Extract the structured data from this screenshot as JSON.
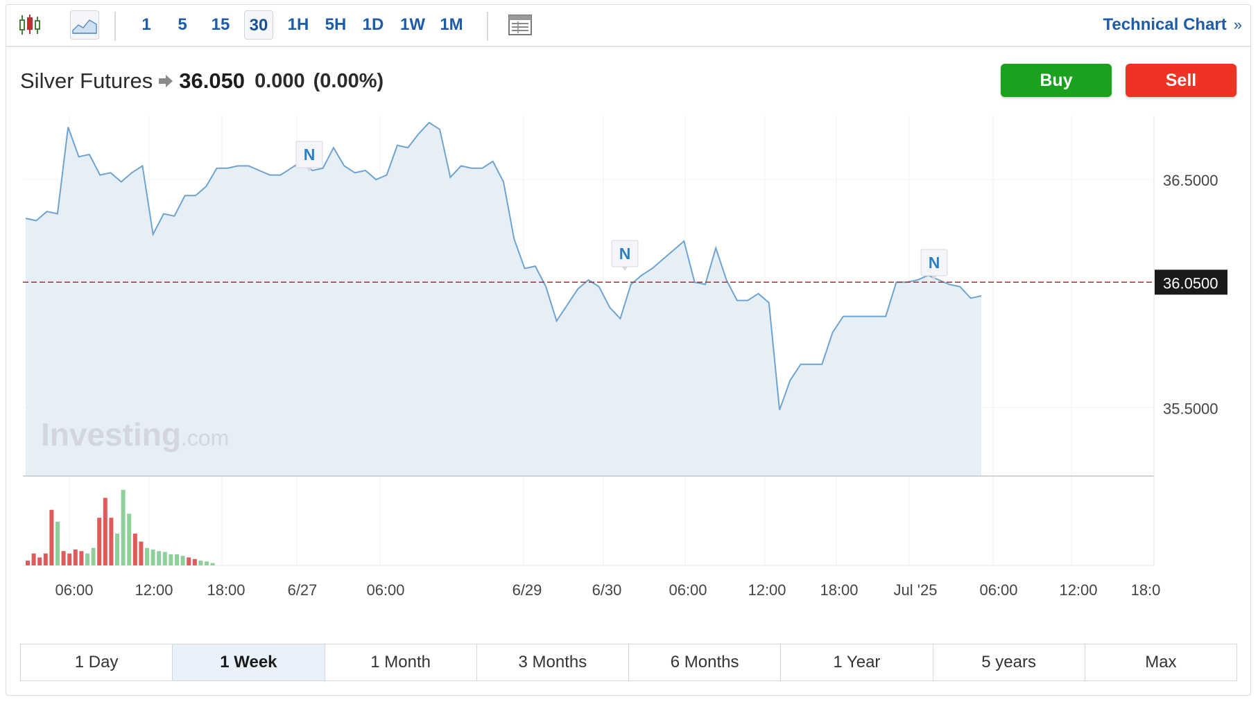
{
  "toolbar": {
    "chart_type_icon": "candlestick-icon",
    "area_icon": "area-chart-icon",
    "intervals": [
      {
        "label": "1",
        "active": false
      },
      {
        "label": "5",
        "active": false
      },
      {
        "label": "15",
        "active": false
      },
      {
        "label": "30",
        "active": true
      },
      {
        "label": "1H",
        "active": false
      },
      {
        "label": "5H",
        "active": false
      },
      {
        "label": "1D",
        "active": false
      },
      {
        "label": "1W",
        "active": false
      },
      {
        "label": "1M",
        "active": false
      }
    ],
    "layout_icon": "layout-table-icon",
    "technical_chart": "Technical Chart",
    "technical_chevron": "»"
  },
  "quote": {
    "name": "Silver Futures",
    "arrow_icon": "right-arrow-icon",
    "price": "36.050",
    "change": "0.000",
    "change_pct": "(0.00%)"
  },
  "actions": {
    "buy": "Buy",
    "sell": "Sell"
  },
  "colors": {
    "buy": "#1aa11d",
    "sell": "#ee3324",
    "accent": "#1f5ca8",
    "line": "#6fa3cf",
    "area": "#e6eff6",
    "price_line": "#b02a2a",
    "vol_up": "#8fd09a",
    "vol_down": "#df5a5a"
  },
  "watermark": {
    "brand": "Investing",
    "suffix": ".com"
  },
  "chart_data": {
    "type": "area",
    "ylim": [
      35.2,
      36.78
    ],
    "y_ticks": [
      {
        "value": 36.5,
        "label": "36.5000"
      },
      {
        "value": 35.5,
        "label": "35.5000"
      }
    ],
    "current_price": {
      "value": 36.05,
      "label": "36.0500"
    },
    "x_tick_labels": [
      "06:00",
      "12:00",
      "18:00",
      "6/27",
      "06:00",
      "6/29",
      "6/30",
      "06:00",
      "12:00",
      "18:00",
      "Jul '25",
      "06:00",
      "12:00",
      "18:0"
    ],
    "x": [
      0,
      3,
      6,
      9,
      12,
      15,
      18,
      21,
      24,
      27,
      30,
      33,
      36,
      39,
      42,
      45,
      48,
      51,
      54,
      57,
      60,
      63,
      66,
      69,
      72,
      75,
      78,
      81,
      84,
      87,
      90,
      93,
      96,
      99,
      102,
      105,
      108,
      111,
      114,
      117,
      120,
      123,
      126,
      129,
      132,
      135,
      138,
      141,
      144,
      147,
      150,
      153,
      156,
      159,
      162,
      165,
      168,
      171,
      174,
      177,
      180,
      183,
      186,
      189,
      192,
      195,
      198,
      201,
      204,
      207,
      210,
      213,
      216,
      219,
      222,
      225,
      228,
      231,
      234,
      237,
      240,
      243,
      246,
      249,
      252,
      255,
      258,
      261,
      264,
      267,
      270
    ],
    "values": [
      36.33,
      36.32,
      36.36,
      36.35,
      36.73,
      36.6,
      36.61,
      36.52,
      36.53,
      36.49,
      36.53,
      36.56,
      36.26,
      36.35,
      36.34,
      36.43,
      36.43,
      36.47,
      36.55,
      36.55,
      36.56,
      36.56,
      36.54,
      36.52,
      36.52,
      36.55,
      36.58,
      36.54,
      36.55,
      36.64,
      36.56,
      36.53,
      36.54,
      36.5,
      36.52,
      36.65,
      36.64,
      36.7,
      36.75,
      36.72,
      36.51,
      36.56,
      36.55,
      36.55,
      36.58,
      36.49,
      36.24,
      36.11,
      36.12,
      36.03,
      35.88,
      35.95,
      36.02,
      36.06,
      36.03,
      35.94,
      35.89,
      36.04,
      36.08,
      36.11,
      36.15,
      36.19,
      36.23,
      36.05,
      36.04,
      36.2,
      36.06,
      35.97,
      35.97,
      36.0,
      35.96,
      35.49,
      35.62,
      35.69,
      35.69,
      35.69,
      35.83,
      35.9,
      35.9,
      35.9,
      35.9,
      35.9,
      36.05,
      36.05,
      36.06,
      36.08,
      36.06,
      36.04,
      36.03,
      35.98,
      35.99
    ],
    "markers": [
      {
        "label": "N",
        "x_label": "6/27"
      },
      {
        "label": "N",
        "x_label": "6/30"
      },
      {
        "label": "N",
        "x_label": "Jul '25"
      }
    ],
    "volume": {
      "up": [
        0,
        0,
        0,
        0,
        0,
        1,
        0,
        0,
        0,
        0,
        1,
        1,
        0,
        0,
        0,
        1,
        1,
        1,
        0,
        0,
        1,
        1,
        1,
        1,
        1,
        1,
        1,
        0,
        0,
        1,
        1,
        1
      ],
      "values": [
        6,
        15,
        10,
        15,
        70,
        55,
        18,
        15,
        20,
        18,
        15,
        22,
        60,
        85,
        60,
        40,
        95,
        65,
        40,
        30,
        22,
        20,
        18,
        17,
        14,
        14,
        12,
        10,
        8,
        6,
        5,
        3
      ]
    },
    "grid": true,
    "legend": "none"
  },
  "periods": [
    {
      "label": "1 Day",
      "active": false
    },
    {
      "label": "1 Week",
      "active": true
    },
    {
      "label": "1 Month",
      "active": false
    },
    {
      "label": "3 Months",
      "active": false
    },
    {
      "label": "6 Months",
      "active": false
    },
    {
      "label": "1 Year",
      "active": false
    },
    {
      "label": "5 years",
      "active": false
    },
    {
      "label": "Max",
      "active": false
    }
  ]
}
